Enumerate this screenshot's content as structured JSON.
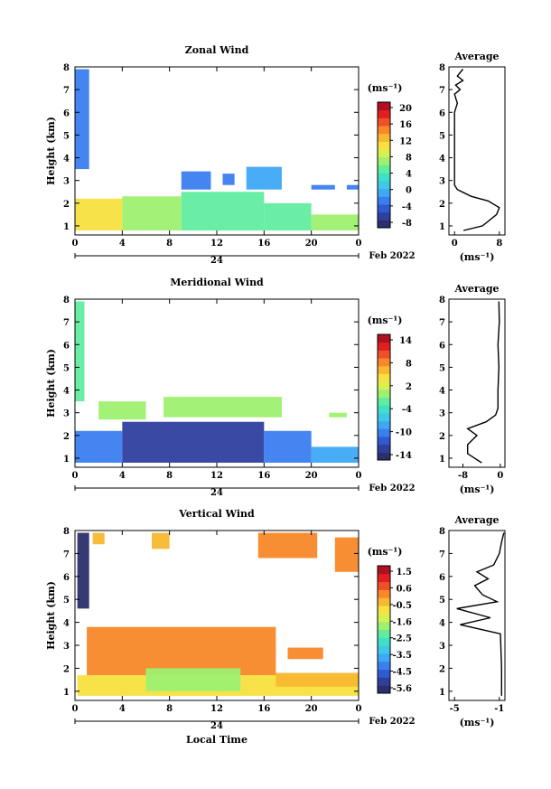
{
  "common": {
    "xlabel": "Local Time",
    "ylabel": "Height (km)",
    "date_label": "Feb 2022",
    "day_label": "24",
    "unit": "(ms⁻¹)",
    "average_title": "Average"
  },
  "chart_data": [
    {
      "type": "heatmap",
      "title": "Zonal Wind",
      "x_ticks": [
        "0",
        "4",
        "8",
        "12",
        "16",
        "20",
        "0"
      ],
      "y_ticks": [
        "1",
        "2",
        "3",
        "4",
        "5",
        "6",
        "7",
        "8"
      ],
      "xlim": [
        0,
        24
      ],
      "ylim": [
        0.6,
        8
      ],
      "colorbar": {
        "ticks": [
          "20",
          "16",
          "12",
          "8",
          "4",
          "0",
          "-4",
          "-8"
        ],
        "range": [
          -10,
          22
        ],
        "colors": [
          "#2b2f6b",
          "#2f3f9e",
          "#2f5bd0",
          "#3a7ef0",
          "#3fa8f5",
          "#40c8e8",
          "#3fe0c8",
          "#62eca0",
          "#9ef070",
          "#d8f050",
          "#f8e040",
          "#f8b830",
          "#f88828",
          "#f05028",
          "#e02020",
          "#b01020"
        ]
      },
      "regions": [
        {
          "t0": 0.0,
          "t1": 1.2,
          "h0": 3.5,
          "h1": 7.9,
          "v": -3
        },
        {
          "t0": 0.0,
          "t1": 4.0,
          "h0": 0.8,
          "h1": 2.2,
          "v": 11
        },
        {
          "t0": 4.0,
          "t1": 9.0,
          "h0": 0.8,
          "h1": 2.3,
          "v": 7
        },
        {
          "t0": 9.0,
          "t1": 16.0,
          "h0": 0.8,
          "h1": 2.5,
          "v": 5
        },
        {
          "t0": 16.0,
          "t1": 20.0,
          "h0": 0.8,
          "h1": 2.0,
          "v": 5
        },
        {
          "t0": 20.0,
          "t1": 24.0,
          "h0": 0.8,
          "h1": 1.5,
          "v": 6
        },
        {
          "t0": 9.0,
          "t1": 11.5,
          "h0": 2.6,
          "h1": 3.4,
          "v": -4
        },
        {
          "t0": 12.5,
          "t1": 13.5,
          "h0": 2.8,
          "h1": 3.3,
          "v": -4
        },
        {
          "t0": 14.5,
          "t1": 17.5,
          "h0": 2.6,
          "h1": 3.6,
          "v": -2
        },
        {
          "t0": 20.0,
          "t1": 22.0,
          "h0": 2.6,
          "h1": 2.8,
          "v": -4
        },
        {
          "t0": 23.0,
          "t1": 24.0,
          "h0": 2.6,
          "h1": 2.8,
          "v": -4
        }
      ],
      "average": {
        "x_ticks": [
          "0",
          "8"
        ],
        "xlim": [
          -1,
          9
        ],
        "profile": [
          [
            1.6,
            0.8
          ],
          [
            5,
            1.0
          ],
          [
            7.5,
            1.5
          ],
          [
            8,
            1.8
          ],
          [
            6,
            2.1
          ],
          [
            3,
            2.3
          ],
          [
            0.5,
            2.6
          ],
          [
            0,
            2.8
          ],
          [
            0,
            3.0
          ],
          [
            0,
            6.0
          ],
          [
            0.5,
            6.4
          ],
          [
            0,
            6.8
          ],
          [
            1,
            7.0
          ],
          [
            0.2,
            7.2
          ],
          [
            1.5,
            7.4
          ],
          [
            0.5,
            7.6
          ],
          [
            1.5,
            7.9
          ]
        ]
      }
    },
    {
      "type": "heatmap",
      "title": "Meridional Wind",
      "x_ticks": [
        "0",
        "4",
        "8",
        "12",
        "16",
        "20",
        "0"
      ],
      "y_ticks": [
        "1",
        "2",
        "3",
        "4",
        "5",
        "6",
        "7",
        "8"
      ],
      "xlim": [
        0,
        24
      ],
      "ylim": [
        0.6,
        8
      ],
      "colorbar": {
        "ticks": [
          "14",
          "8",
          "2",
          "-4",
          "-10",
          "-14"
        ],
        "range": [
          -16,
          17
        ],
        "colors": [
          "#2b2f6b",
          "#2f3f9e",
          "#2f5bd0",
          "#3a7ef0",
          "#3fa8f5",
          "#40c8e8",
          "#3fe0c8",
          "#62eca0",
          "#9ef070",
          "#d8f050",
          "#f8e040",
          "#f8b830",
          "#f88828",
          "#f05028",
          "#e02020",
          "#b01020"
        ]
      },
      "regions": [
        {
          "t0": 0.0,
          "t1": 0.8,
          "h0": 3.5,
          "h1": 7.9,
          "v": 0
        },
        {
          "t0": 0.0,
          "t1": 4.0,
          "h0": 0.8,
          "h1": 2.2,
          "v": -9
        },
        {
          "t0": 4.0,
          "t1": 16.0,
          "h0": 0.8,
          "h1": 2.6,
          "v": -12
        },
        {
          "t0": 16.0,
          "t1": 20.0,
          "h0": 0.8,
          "h1": 2.2,
          "v": -9
        },
        {
          "t0": 20.0,
          "t1": 24.0,
          "h0": 0.8,
          "h1": 1.5,
          "v": -7
        },
        {
          "t0": 2.0,
          "t1": 6.0,
          "h0": 2.7,
          "h1": 3.5,
          "v": 2
        },
        {
          "t0": 7.5,
          "t1": 17.5,
          "h0": 2.8,
          "h1": 3.7,
          "v": 1
        },
        {
          "t0": 21.5,
          "t1": 23.0,
          "h0": 2.8,
          "h1": 3.0,
          "v": 1
        }
      ],
      "average": {
        "x_ticks": [
          "-8",
          "0"
        ],
        "xlim": [
          -11,
          1
        ],
        "profile": [
          [
            -4,
            0.8
          ],
          [
            -7,
            1.2
          ],
          [
            -7,
            1.6
          ],
          [
            -5,
            2.0
          ],
          [
            -7,
            2.3
          ],
          [
            -3,
            2.6
          ],
          [
            -1,
            2.9
          ],
          [
            -0.5,
            3.2
          ],
          [
            -0.5,
            4.0
          ],
          [
            -0.3,
            5.0
          ],
          [
            -0.5,
            6.0
          ],
          [
            -0.2,
            7.0
          ],
          [
            -0.3,
            7.9
          ]
        ]
      }
    },
    {
      "type": "heatmap",
      "title": "Vertical Wind",
      "x_ticks": [
        "0",
        "4",
        "8",
        "12",
        "16",
        "20",
        "0"
      ],
      "y_ticks": [
        "1",
        "2",
        "3",
        "4",
        "5",
        "6",
        "7",
        "8"
      ],
      "xlim": [
        0,
        24
      ],
      "ylim": [
        0.6,
        8
      ],
      "colorbar": {
        "ticks": [
          "1.5",
          "0.6",
          "-0.5",
          "-1.6",
          "-2.5",
          "-3.5",
          "-4.5",
          "-5.6"
        ],
        "range": [
          -6,
          2
        ],
        "colors": [
          "#2b2f6b",
          "#2f3f9e",
          "#2f5bd0",
          "#3a7ef0",
          "#3fa8f5",
          "#40c8e8",
          "#3fe0c8",
          "#62eca0",
          "#9ef070",
          "#d8f050",
          "#f8e040",
          "#f8b830",
          "#f88828",
          "#f05028",
          "#e02020",
          "#b01020"
        ]
      },
      "regions": [
        {
          "t0": 0.2,
          "t1": 1.2,
          "h0": 4.6,
          "h1": 7.9,
          "v": -5.6
        },
        {
          "t0": 0.2,
          "t1": 24.0,
          "h0": 0.8,
          "h1": 1.7,
          "v": -0.6
        },
        {
          "t0": 1.0,
          "t1": 17.0,
          "h0": 1.7,
          "h1": 3.8,
          "v": 0.2
        },
        {
          "t0": 6.0,
          "t1": 14.0,
          "h0": 1.0,
          "h1": 2.0,
          "v": -1.6
        },
        {
          "t0": 17.0,
          "t1": 24.0,
          "h0": 1.2,
          "h1": 1.8,
          "v": -0.5
        },
        {
          "t0": 18.0,
          "t1": 21.0,
          "h0": 2.4,
          "h1": 2.9,
          "v": 0.2
        },
        {
          "t0": 1.5,
          "t1": 2.5,
          "h0": 7.4,
          "h1": 7.9,
          "v": -0.5
        },
        {
          "t0": 6.5,
          "t1": 8.0,
          "h0": 7.2,
          "h1": 7.9,
          "v": -0.5
        },
        {
          "t0": 15.5,
          "t1": 20.5,
          "h0": 6.8,
          "h1": 7.9,
          "v": 0.2
        },
        {
          "t0": 22.0,
          "t1": 24.0,
          "h0": 6.2,
          "h1": 7.7,
          "v": 0.2
        }
      ],
      "average": {
        "x_ticks": [
          "-5",
          "-1"
        ],
        "xlim": [
          -5.5,
          -0.5
        ],
        "profile": [
          [
            -0.8,
            0.8
          ],
          [
            -0.8,
            2.0
          ],
          [
            -0.9,
            3.5
          ],
          [
            -4.5,
            3.9
          ],
          [
            -1.8,
            4.2
          ],
          [
            -4.8,
            4.6
          ],
          [
            -1.2,
            4.9
          ],
          [
            -2.5,
            5.2
          ],
          [
            -3.2,
            5.6
          ],
          [
            -2,
            5.9
          ],
          [
            -3.0,
            6.2
          ],
          [
            -1.5,
            6.5
          ],
          [
            -1.0,
            7.0
          ],
          [
            -0.8,
            7.5
          ],
          [
            -0.6,
            7.9
          ]
        ]
      }
    }
  ]
}
